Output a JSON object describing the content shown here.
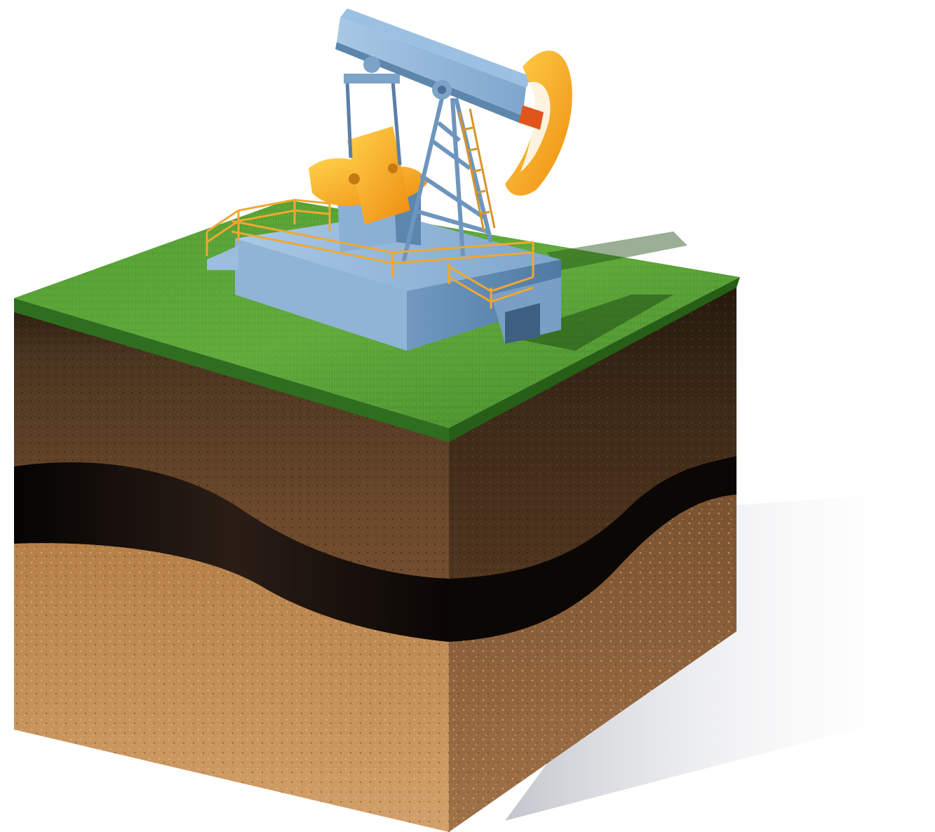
{
  "scene": {
    "subject": "oil-pumpjack-on-soil-cross-section",
    "colors": {
      "background": "#ffffff",
      "grass_light": "#5fa83a",
      "grass_dark": "#2f6e1f",
      "topsoil": "#6b4a2e",
      "topsoil_dark": "#3a2414",
      "oil_layer": "#0d0907",
      "sand": "#c8925a",
      "sand_dark": "#8a5a2e",
      "pump_blue": "#8fb4d6",
      "pump_blue_dark": "#5d86ad",
      "pump_orange": "#f2a21a",
      "railing": "#f0a830",
      "shadow": "#c9ccd2"
    },
    "icons": [
      "pumpjack-icon"
    ]
  }
}
